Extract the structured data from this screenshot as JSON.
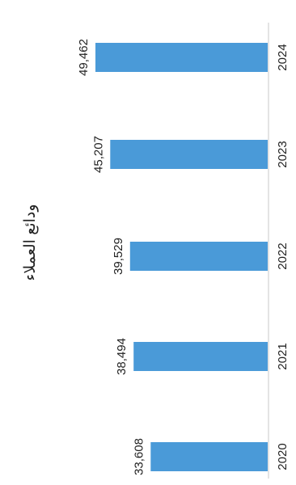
{
  "chart_data": {
    "type": "bar",
    "orientation": "horizontal-rotated",
    "title": "ودائع العملاء",
    "categories": [
      "2020",
      "2021",
      "2022",
      "2023",
      "2024"
    ],
    "values": [
      33608,
      38494,
      39529,
      45207,
      49462
    ],
    "value_labels": [
      "33,608",
      "38,494",
      "39,529",
      "45,207",
      "49,462"
    ],
    "bar_color": "#4a9ad8",
    "axis_line_color": "#c8c8c8",
    "grid": false,
    "legend": "none"
  }
}
